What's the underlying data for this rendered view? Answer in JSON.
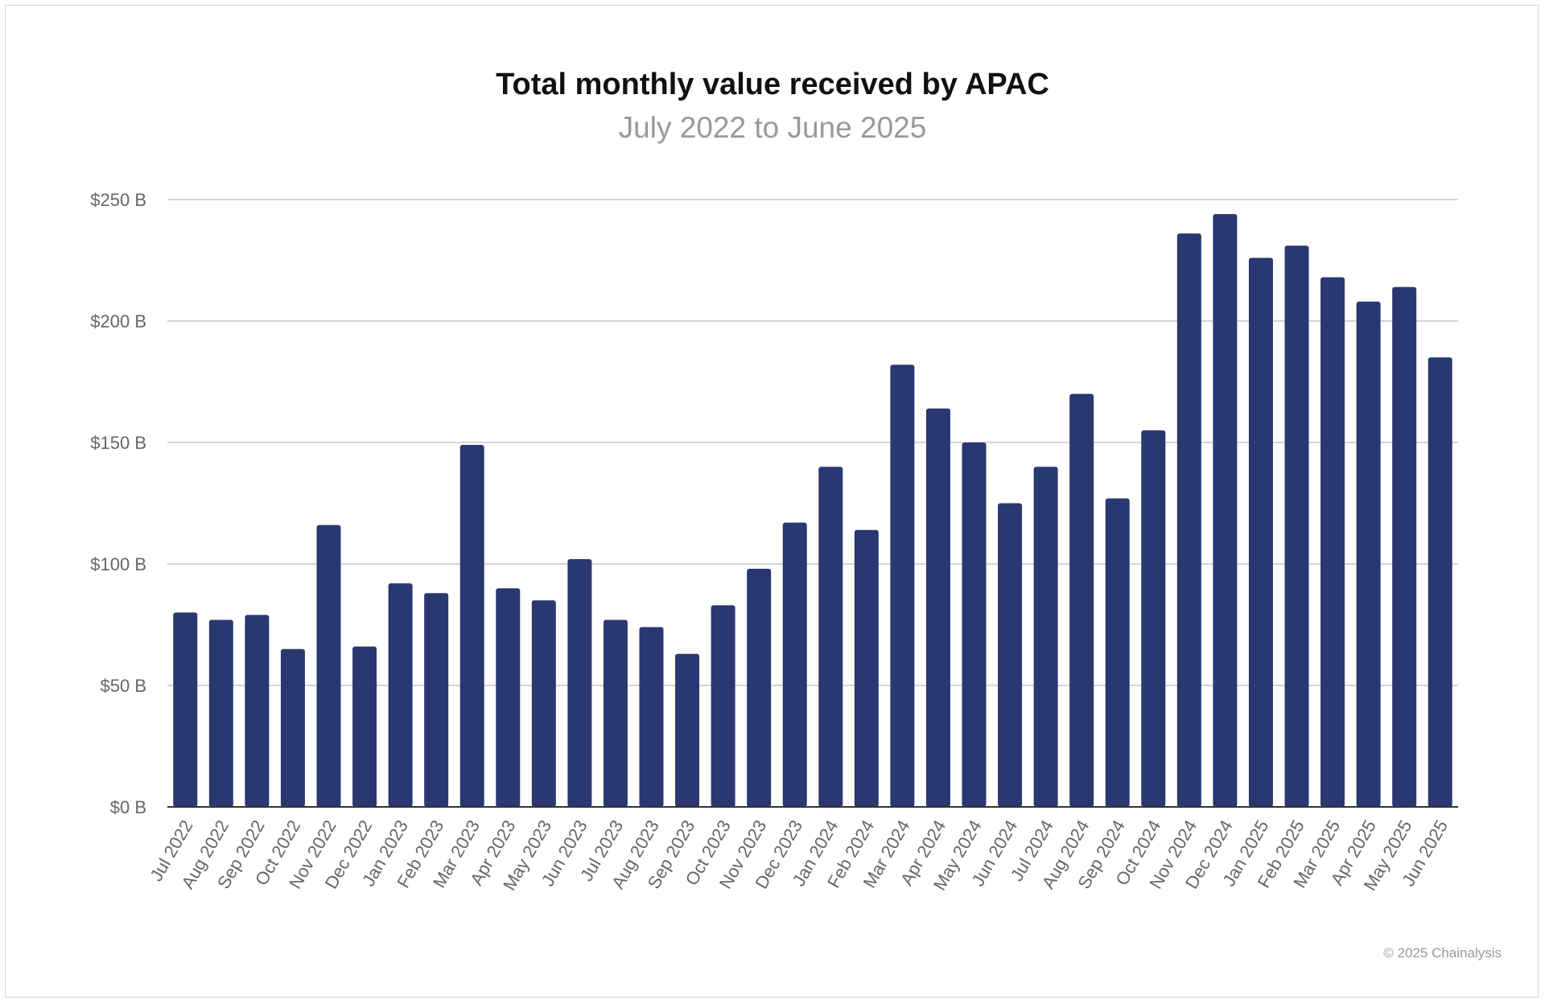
{
  "chart_data": {
    "type": "bar",
    "title": "Total monthly value received by APAC",
    "subtitle": "July 2022 to June 2025",
    "xlabel": "",
    "ylabel": "",
    "ylim": [
      0,
      250
    ],
    "yticks": [
      0,
      50,
      100,
      150,
      200,
      250
    ],
    "ytick_labels": [
      "$0 B",
      "$50 B",
      "$100 B",
      "$150 B",
      "$200 B",
      "$250 B"
    ],
    "grid": true,
    "bar_color": "#293871",
    "categories": [
      "Jul 2022",
      "Aug 2022",
      "Sep 2022",
      "Oct 2022",
      "Nov 2022",
      "Dec 2022",
      "Jan 2023",
      "Feb 2023",
      "Mar 2023",
      "Apr 2023",
      "May 2023",
      "Jun 2023",
      "Jul 2023",
      "Aug 2023",
      "Sep 2023",
      "Oct 2023",
      "Nov 2023",
      "Dec 2023",
      "Jan 2024",
      "Feb 2024",
      "Mar 2024",
      "Apr 2024",
      "May 2024",
      "Jun 2024",
      "Jul 2024",
      "Aug 2024",
      "Sep 2024",
      "Oct 2024",
      "Nov 2024",
      "Dec 2024",
      "Jan 2025",
      "Feb 2025",
      "Mar 2025",
      "Apr 2025",
      "May 2025",
      "Jun 2025"
    ],
    "values": [
      80,
      77,
      79,
      65,
      116,
      66,
      92,
      88,
      149,
      90,
      85,
      102,
      77,
      74,
      63,
      83,
      98,
      117,
      140,
      114,
      182,
      164,
      150,
      125,
      140,
      170,
      127,
      155,
      236,
      244,
      226,
      231,
      218,
      208,
      214,
      185
    ]
  },
  "footer": {
    "credit": "© 2025 Chainalysis"
  }
}
